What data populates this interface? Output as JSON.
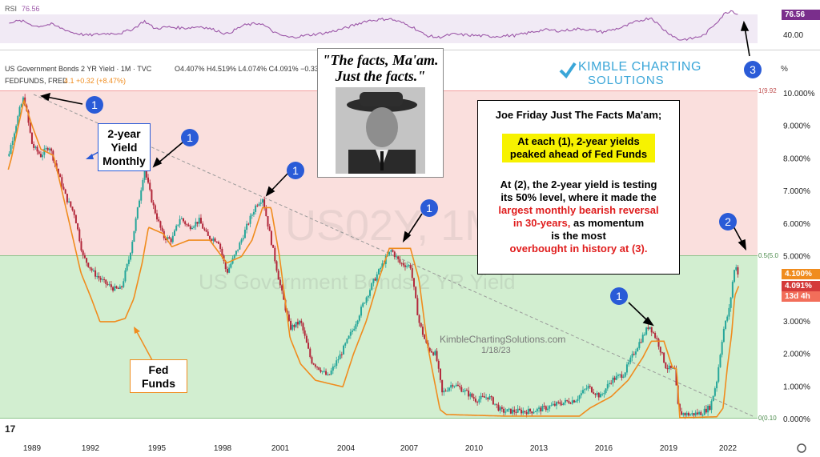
{
  "header": {
    "series_title": "US Government Bonds 2 YR Yield · 1M · TVC",
    "ohlc": "O4.407% H4.519% L4.074% C4.091% −0.337",
    "fed_label": "FEDFUNDS, FRED",
    "fed_values": "4.1  +0.32 (+8.47%)",
    "rsi_label": "RSI",
    "rsi_value": "76.56",
    "percent_sign": "%"
  },
  "watermark": {
    "symbol": "US02Y, 1M",
    "name": "US Government Bonds 2 YR Yield",
    "site": "KimbleChartingSolutions.com",
    "date": "1/18/23"
  },
  "logo": {
    "line1": "KIMBLE CHARTING",
    "line2": "SOLUTIONS"
  },
  "quote": {
    "line1": "\"The facts, Ma'am.",
    "line2": "Just the facts.\""
  },
  "note": {
    "title": "Joe Friday Just The Facts Ma'am;",
    "highlight_1": "At each (1), 2-year yields",
    "highlight_2": "peaked ahead of Fed Funds",
    "p1": "At (2), the 2-year yield is testing",
    "p2": "its 50% level, where it made the",
    "red1": "largest monthly bearish reversal",
    "red2a": "in 30-years,",
    "p3": " as momentum",
    "p4": "is the most",
    "red3": "overbought in history at (3)."
  },
  "labels": {
    "yield_box": [
      "2-year",
      "Yield",
      "Monthly"
    ],
    "fed_box": [
      "Fed",
      "Funds"
    ]
  },
  "badges": {
    "rsi": "76.56",
    "fed": "4.100%",
    "yield": "4.091%",
    "time": "13d 4h"
  },
  "fib_labels": {
    "top": "1(9.92",
    "mid": "0.5(5.0",
    "bottom": "0(0.10"
  },
  "colors": {
    "up": "#26a69a",
    "down": "#b2273a",
    "fed": "#f08c1e",
    "rsi": "#9c57a8",
    "red_zone": "rgba(242,174,170,0.40)",
    "green_zone": "rgba(155,218,150,0.45)",
    "marker": "#2a5bd7"
  },
  "chart_data": {
    "type": "line",
    "title": "US Government Bonds 2 YR Yield",
    "x_ticks": [
      "1989",
      "1992",
      "1995",
      "1998",
      "2001",
      "2004",
      "2007",
      "2010",
      "2013",
      "2016",
      "2019",
      "2022"
    ],
    "y_ticks": [
      "10.000%",
      "9.000%",
      "8.000%",
      "7.000%",
      "6.000%",
      "5.000%",
      "4.000%",
      "3.000%",
      "2.000%",
      "1.000%",
      "0.000%"
    ],
    "ylim": [
      0,
      10.5
    ],
    "rsi_ticks": [
      "40.00"
    ],
    "series": [
      {
        "name": "US Government Bonds 2 YR Yield",
        "points": [
          [
            1988.0,
            7.3
          ],
          [
            1988.5,
            8.2
          ],
          [
            1989.0,
            9.5
          ],
          [
            1989.2,
            9.9
          ],
          [
            1989.6,
            8.4
          ],
          [
            1990.0,
            8.1
          ],
          [
            1990.4,
            8.4
          ],
          [
            1990.8,
            7.6
          ],
          [
            1991.2,
            6.8
          ],
          [
            1991.6,
            6.3
          ],
          [
            1992.0,
            5.0
          ],
          [
            1992.5,
            4.5
          ],
          [
            1993.0,
            4.2
          ],
          [
            1993.5,
            4.0
          ],
          [
            1993.8,
            4.0
          ],
          [
            1994.2,
            5.0
          ],
          [
            1994.6,
            6.5
          ],
          [
            1994.9,
            7.7
          ],
          [
            1995.3,
            6.6
          ],
          [
            1995.8,
            5.6
          ],
          [
            1996.2,
            5.5
          ],
          [
            1996.6,
            6.2
          ],
          [
            1997.0,
            5.9
          ],
          [
            1997.5,
            6.1
          ],
          [
            1997.9,
            5.6
          ],
          [
            1998.4,
            5.5
          ],
          [
            1998.8,
            4.5
          ],
          [
            1999.3,
            5.2
          ],
          [
            1999.8,
            6.0
          ],
          [
            2000.2,
            6.6
          ],
          [
            2000.5,
            6.8
          ],
          [
            2000.9,
            5.5
          ],
          [
            2001.3,
            4.2
          ],
          [
            2001.8,
            2.8
          ],
          [
            2002.3,
            3.0
          ],
          [
            2002.8,
            1.8
          ],
          [
            2003.3,
            1.5
          ],
          [
            2003.6,
            1.3
          ],
          [
            2004.2,
            2.0
          ],
          [
            2004.8,
            2.8
          ],
          [
            2005.3,
            3.6
          ],
          [
            2005.8,
            4.3
          ],
          [
            2006.3,
            4.9
          ],
          [
            2006.6,
            5.2
          ],
          [
            2007.0,
            4.8
          ],
          [
            2007.5,
            4.7
          ],
          [
            2007.9,
            3.0
          ],
          [
            2008.3,
            2.2
          ],
          [
            2008.7,
            2.0
          ],
          [
            2009.0,
            0.8
          ],
          [
            2009.5,
            1.1
          ],
          [
            2010.0,
            0.9
          ],
          [
            2010.6,
            0.6
          ],
          [
            2011.2,
            0.7
          ],
          [
            2011.8,
            0.25
          ],
          [
            2012.5,
            0.25
          ],
          [
            2013.2,
            0.25
          ],
          [
            2013.9,
            0.35
          ],
          [
            2014.6,
            0.5
          ],
          [
            2015.3,
            0.6
          ],
          [
            2015.9,
            1.0
          ],
          [
            2016.5,
            0.7
          ],
          [
            2017.0,
            1.2
          ],
          [
            2017.6,
            1.4
          ],
          [
            2018.2,
            2.2
          ],
          [
            2018.8,
            2.9
          ],
          [
            2019.2,
            2.4
          ],
          [
            2019.6,
            1.6
          ],
          [
            2020.0,
            1.5
          ],
          [
            2020.2,
            0.2
          ],
          [
            2020.7,
            0.15
          ],
          [
            2021.3,
            0.2
          ],
          [
            2021.7,
            0.4
          ],
          [
            2022.0,
            1.2
          ],
          [
            2022.3,
            2.7
          ],
          [
            2022.6,
            3.4
          ],
          [
            2022.8,
            4.5
          ],
          [
            2022.95,
            4.8
          ],
          [
            2023.05,
            4.09
          ]
        ]
      },
      {
        "name": "FEDFUNDS",
        "points": [
          [
            1988.0,
            6.6
          ],
          [
            1988.6,
            8.0
          ],
          [
            1989.2,
            9.8
          ],
          [
            1989.6,
            9.0
          ],
          [
            1990.0,
            8.3
          ],
          [
            1990.6,
            8.1
          ],
          [
            1990.9,
            7.3
          ],
          [
            1991.4,
            5.9
          ],
          [
            1991.9,
            4.5
          ],
          [
            1992.4,
            3.7
          ],
          [
            1992.8,
            3.0
          ],
          [
            1993.5,
            3.0
          ],
          [
            1994.0,
            3.1
          ],
          [
            1994.4,
            3.7
          ],
          [
            1994.8,
            4.8
          ],
          [
            1995.1,
            5.9
          ],
          [
            1995.8,
            5.7
          ],
          [
            1996.2,
            5.3
          ],
          [
            1997.0,
            5.5
          ],
          [
            1998.0,
            5.5
          ],
          [
            1998.8,
            4.8
          ],
          [
            1999.5,
            5.0
          ],
          [
            2000.0,
            5.5
          ],
          [
            2000.5,
            6.5
          ],
          [
            2000.9,
            6.5
          ],
          [
            2001.3,
            5.0
          ],
          [
            2001.8,
            2.5
          ],
          [
            2002.3,
            1.7
          ],
          [
            2003.0,
            1.2
          ],
          [
            2004.3,
            1.0
          ],
          [
            2004.8,
            2.0
          ],
          [
            2005.4,
            3.0
          ],
          [
            2006.0,
            4.3
          ],
          [
            2006.5,
            5.25
          ],
          [
            2007.5,
            5.25
          ],
          [
            2007.9,
            4.3
          ],
          [
            2008.3,
            2.3
          ],
          [
            2008.9,
            0.3
          ],
          [
            2009.2,
            0.15
          ],
          [
            2012.0,
            0.1
          ],
          [
            2015.5,
            0.1
          ],
          [
            2016.0,
            0.35
          ],
          [
            2017.0,
            0.7
          ],
          [
            2017.8,
            1.2
          ],
          [
            2018.5,
            1.9
          ],
          [
            2018.9,
            2.4
          ],
          [
            2019.5,
            2.4
          ],
          [
            2019.9,
            1.6
          ],
          [
            2020.1,
            1.55
          ],
          [
            2020.25,
            0.05
          ],
          [
            2022.0,
            0.08
          ],
          [
            2022.3,
            0.35
          ],
          [
            2022.5,
            1.6
          ],
          [
            2022.7,
            2.6
          ],
          [
            2022.85,
            3.8
          ],
          [
            2023.05,
            4.1
          ]
        ]
      }
    ],
    "rsi_points": [
      [
        1988.0,
        62
      ],
      [
        1989.1,
        66
      ],
      [
        1989.8,
        56
      ],
      [
        1990.5,
        60
      ],
      [
        1991.5,
        45
      ],
      [
        1992.2,
        40
      ],
      [
        1993.0,
        43
      ],
      [
        1993.8,
        44
      ],
      [
        1994.4,
        52
      ],
      [
        1994.9,
        66
      ],
      [
        1995.4,
        52
      ],
      [
        1996.0,
        55
      ],
      [
        1996.8,
        53
      ],
      [
        1997.6,
        56
      ],
      [
        1998.4,
        48
      ],
      [
        1998.8,
        42
      ],
      [
        1999.6,
        58
      ],
      [
        2000.4,
        62
      ],
      [
        2001.2,
        42
      ],
      [
        2001.8,
        36
      ],
      [
        2002.6,
        40
      ],
      [
        2003.6,
        45
      ],
      [
        2004.5,
        54
      ],
      [
        2005.4,
        66
      ],
      [
        2006.5,
        70
      ],
      [
        2007.0,
        64
      ],
      [
        2007.6,
        55
      ],
      [
        2008.2,
        40
      ],
      [
        2008.8,
        36
      ],
      [
        2009.5,
        42
      ],
      [
        2010.4,
        40
      ],
      [
        2011.4,
        38
      ],
      [
        2012.5,
        40
      ],
      [
        2013.8,
        50
      ],
      [
        2014.6,
        48
      ],
      [
        2015.6,
        52
      ],
      [
        2016.6,
        46
      ],
      [
        2017.5,
        54
      ],
      [
        2018.3,
        66
      ],
      [
        2018.9,
        72
      ],
      [
        2019.5,
        50
      ],
      [
        2020.2,
        32
      ],
      [
        2020.8,
        34
      ],
      [
        2021.4,
        40
      ],
      [
        2021.9,
        60
      ],
      [
        2022.4,
        80
      ],
      [
        2022.7,
        85
      ],
      [
        2023.05,
        76.56
      ]
    ],
    "fib_levels": [
      9.92,
      5.0,
      0.1
    ],
    "annotations": [
      "1",
      "1",
      "1",
      "1",
      "1",
      "1",
      "2",
      "3"
    ]
  }
}
